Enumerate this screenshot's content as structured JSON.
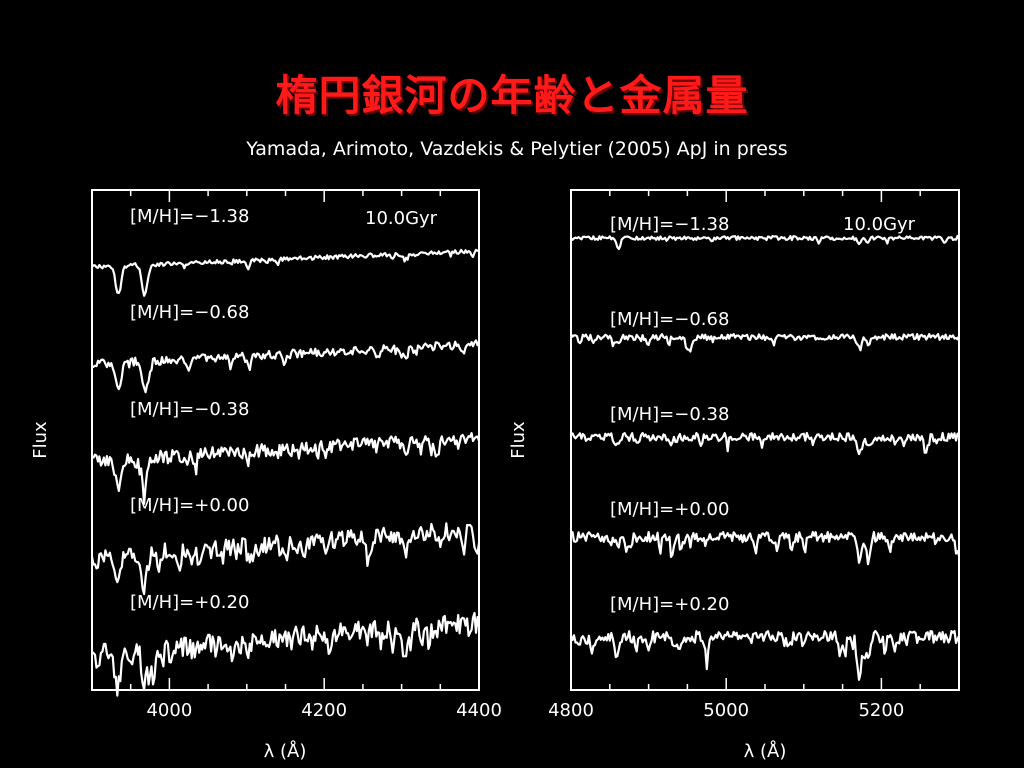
{
  "slide": {
    "title": "楕円銀河の年齢と金属量",
    "subtitle": "Yamada, Arimoto, Vazdekis & Pelytier (2005) ApJ in press"
  },
  "chart_data": [
    {
      "type": "line",
      "xlabel": "λ (Å)",
      "ylabel": "Flux",
      "xlim": [
        3900,
        4400
      ],
      "xticks": [
        4000,
        4200,
        4400
      ],
      "age_label": "10.0Gyr",
      "series": [
        {
          "name": "[M/H]=−1.38"
        },
        {
          "name": "[M/H]=−0.68"
        },
        {
          "name": "[M/H]=−0.38"
        },
        {
          "name": "[M/H]=+0.00"
        },
        {
          "name": "[M/H]=+0.20"
        }
      ]
    },
    {
      "type": "line",
      "xlabel": "λ (Å)",
      "ylabel": "Flux",
      "xlim": [
        4800,
        5300
      ],
      "xticks": [
        4800,
        5000,
        5200
      ],
      "age_label": "10.0Gyr",
      "series": [
        {
          "name": "[M/H]=−1.38"
        },
        {
          "name": "[M/H]=−0.68"
        },
        {
          "name": "[M/H]=−0.38"
        },
        {
          "name": "[M/H]=+0.00"
        },
        {
          "name": "[M/H]=+0.20"
        }
      ]
    }
  ]
}
